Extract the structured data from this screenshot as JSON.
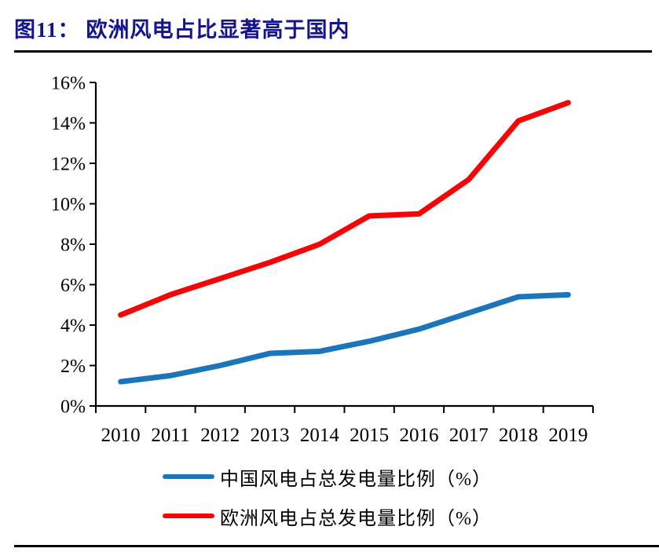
{
  "figure": {
    "label": "图11：",
    "title": "欧洲风电占比显著高于国内"
  },
  "chart_data": {
    "type": "line",
    "title": "欧洲风电占比显著高于国内",
    "categories": [
      "2010",
      "2011",
      "2012",
      "2013",
      "2014",
      "2015",
      "2016",
      "2017",
      "2018",
      "2019"
    ],
    "series": [
      {
        "name": "中国风电占总发电量比例（%）",
        "color": "#1b75bb",
        "values": [
          1.2,
          1.5,
          2.0,
          2.6,
          2.7,
          3.2,
          3.8,
          4.6,
          5.4,
          5.5
        ]
      },
      {
        "name": "欧洲风电占总发电量比例（%）",
        "color": "#f40606",
        "values": [
          4.5,
          5.5,
          6.3,
          7.1,
          8.0,
          9.4,
          9.5,
          11.2,
          14.1,
          15.0
        ]
      }
    ],
    "xlabel": "",
    "ylabel": "",
    "ylim": [
      0,
      16
    ],
    "ytick_step": 2,
    "ytick_labels": [
      "0%",
      "2%",
      "4%",
      "6%",
      "8%",
      "10%",
      "12%",
      "14%",
      "16%"
    ],
    "grid": false,
    "legend_position": "bottom",
    "axis_color": "#000000"
  }
}
